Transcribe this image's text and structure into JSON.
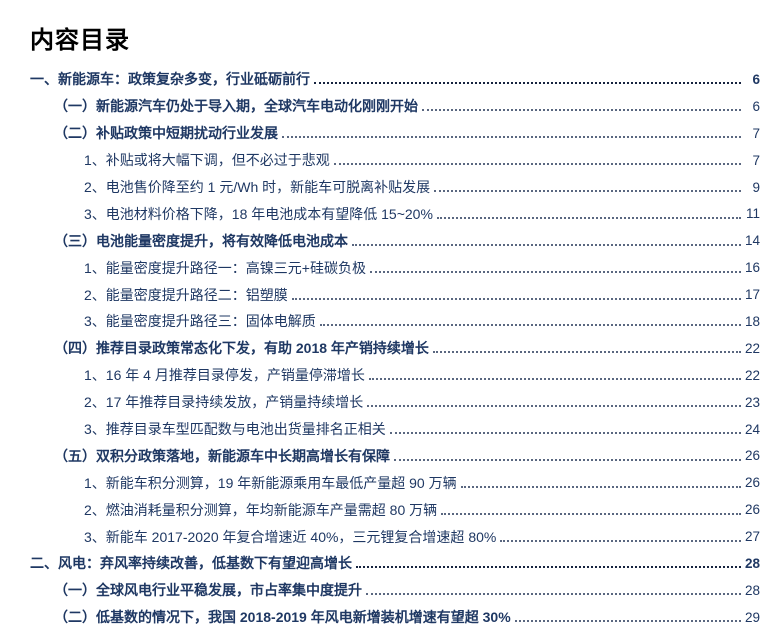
{
  "page": {
    "title": "内容目录"
  },
  "colors": {
    "text": "#1f3863",
    "title": "#000000",
    "dots_regular": "#5a6780",
    "dots_bold": "#16233f",
    "background": "#ffffff"
  },
  "toc": {
    "entries": [
      {
        "level": 1,
        "label": "一、新能源车：政策复杂多变，行业砥砺前行",
        "page": "6"
      },
      {
        "level": 2,
        "label": "（一）新能源汽车仍处于导入期，全球汽车电动化刚刚开始",
        "page": "6"
      },
      {
        "level": 2,
        "label": "（二）补贴政策中短期扰动行业发展",
        "page": "7"
      },
      {
        "level": 3,
        "label": "1、补贴或将大幅下调，但不必过于悲观",
        "page": "7"
      },
      {
        "level": 3,
        "label": "2、电池售价降至约 1 元/Wh 时，新能车可脱离补贴发展",
        "page": "9"
      },
      {
        "level": 3,
        "label": "3、电池材料价格下降，18 年电池成本有望降低 15~20%",
        "page": "11"
      },
      {
        "level": 2,
        "label": "（三）电池能量密度提升，将有效降低电池成本",
        "page": "14"
      },
      {
        "level": 3,
        "label": "1、能量密度提升路径一：高镍三元+硅碳负极",
        "page": "16"
      },
      {
        "level": 3,
        "label": "2、能量密度提升路径二：铝塑膜",
        "page": "17"
      },
      {
        "level": 3,
        "label": "3、能量密度提升路径三：固体电解质",
        "page": "18"
      },
      {
        "level": 2,
        "label": "（四）推荐目录政策常态化下发，有助 2018 年产销持续增长",
        "page": "22"
      },
      {
        "level": 3,
        "label": "1、16 年 4 月推荐目录停发，产销量停滞增长",
        "page": "22"
      },
      {
        "level": 3,
        "label": "2、17 年推荐目录持续发放，产销量持续增长",
        "page": "23"
      },
      {
        "level": 3,
        "label": "3、推荐目录车型匹配数与电池出货量排名正相关",
        "page": "24"
      },
      {
        "level": 2,
        "label": "（五）双积分政策落地，新能源车中长期高增长有保障",
        "page": "26"
      },
      {
        "level": 3,
        "label": "1、新能车积分测算，19 年新能源乘用车最低产量超 90 万辆",
        "page": "26"
      },
      {
        "level": 3,
        "label": "2、燃油消耗量积分测算，年均新能源车产量需超 80 万辆",
        "page": "26"
      },
      {
        "level": 3,
        "label": "3、新能车 2017-2020 年复合增速近 40%，三元锂复合增速超 80%",
        "page": "27"
      },
      {
        "level": 1,
        "label": "二、风电：弃风率持续改善，低基数下有望迎高增长",
        "page": "28"
      },
      {
        "level": 2,
        "label": "（一）全球风电行业平稳发展，市占率集中度提升",
        "page": "28"
      },
      {
        "level": 2,
        "label": "（二）低基数的情况下，我国 2018-2019 年风电新增装机增速有望超 30%",
        "page": "29"
      }
    ]
  }
}
